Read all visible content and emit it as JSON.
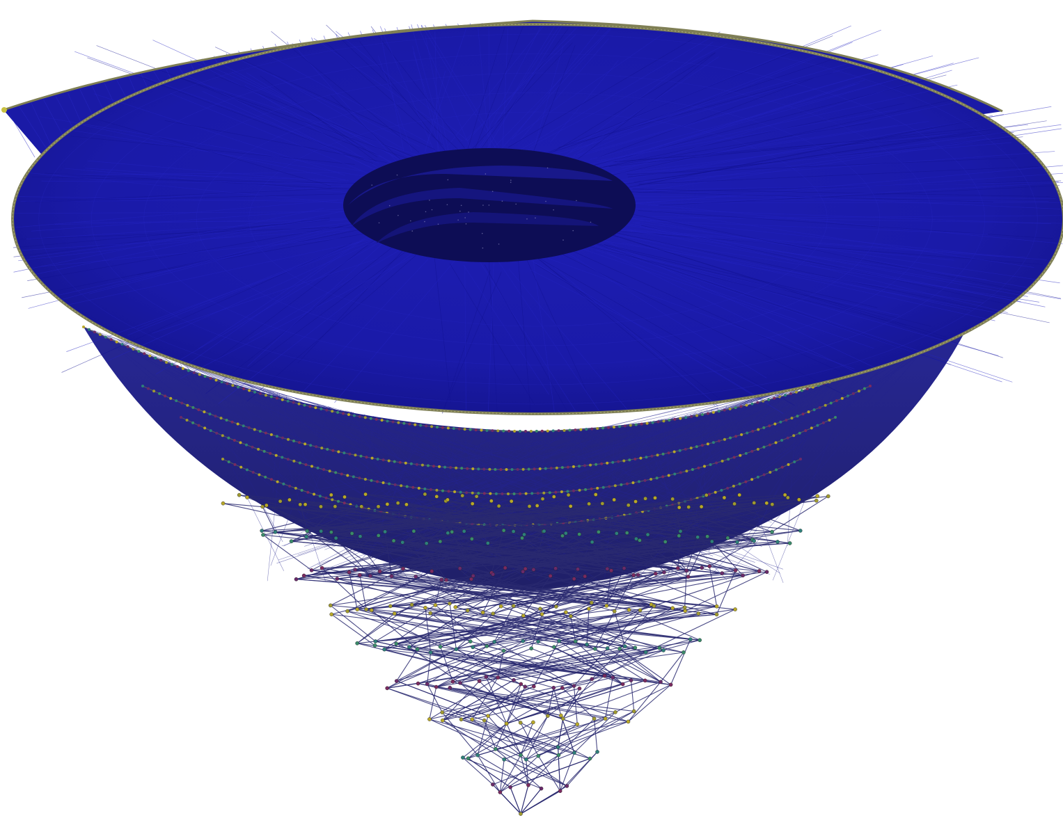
{
  "figure": {
    "kind": "3d-spiral-network-graph",
    "background": "#ffffff",
    "edge_color": "#1a1aa6",
    "edge_color_deep": "#101070",
    "edge_color_sparse": "#2a2a70",
    "node_color_rim": "#8a8a52",
    "node_colors": [
      "#b8a82a",
      "#2e7f7a",
      "#6a2a6a",
      "#a09a30",
      "#3a8a6a",
      "#7a2a60"
    ],
    "hole_color": "#0d0d55",
    "rings": 4,
    "sparse_levels": 9
  }
}
